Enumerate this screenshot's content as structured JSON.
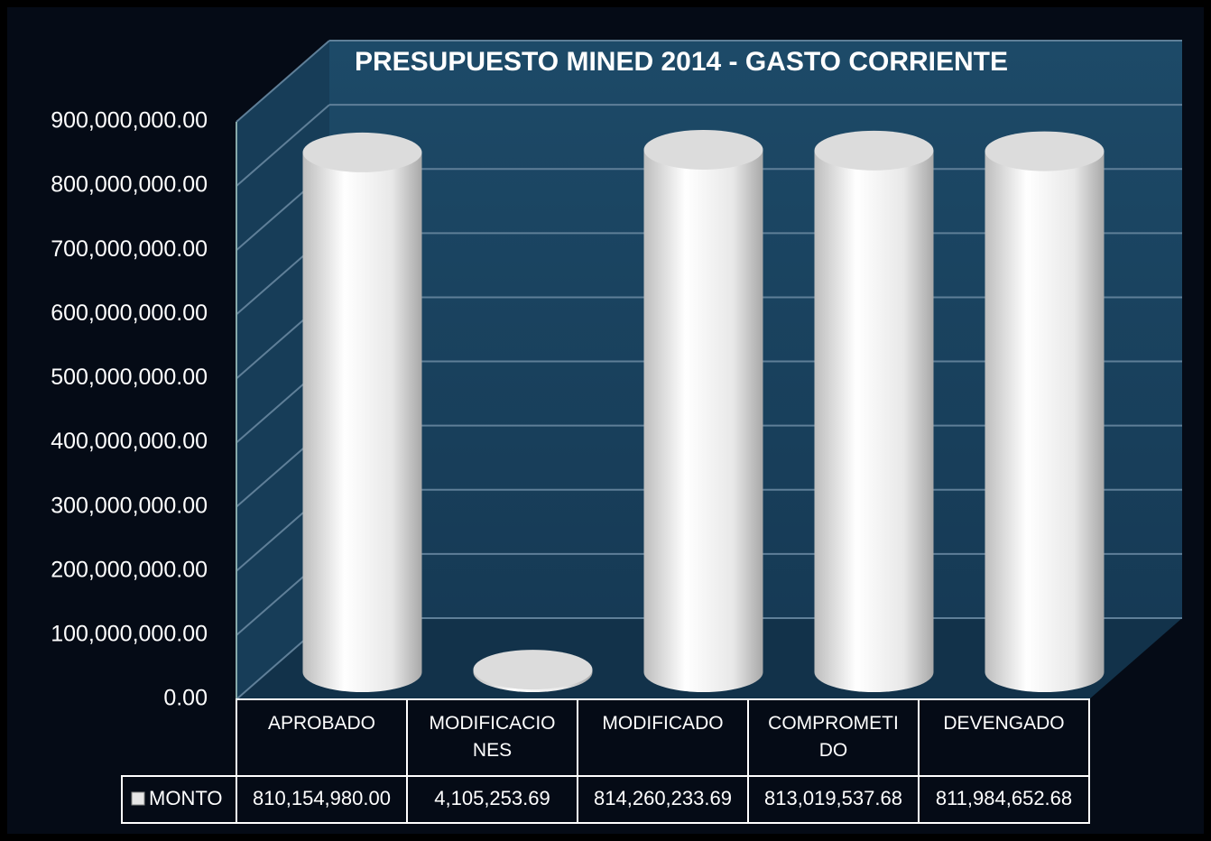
{
  "chart_data": {
    "type": "bar",
    "title": "PRESUPUESTO  MINED 2014 - GASTO CORRIENTE",
    "categories": [
      "APROBADO",
      "MODIFICACIONES",
      "MODIFICADO",
      "COMPROMETIDO",
      "DEVENGADO"
    ],
    "series": [
      {
        "name": "MONTO",
        "color": "#e6e6e6",
        "values": [
          810154980.0,
          4105253.69,
          814260233.69,
          813019537.68,
          811984652.68
        ],
        "value_labels": [
          "810,154,980.00",
          "4,105,253.69",
          "814,260,233.69",
          "813,019,537.68",
          "811,984,652.68"
        ]
      }
    ],
    "ylim": [
      0,
      900000000
    ],
    "yticks": [
      {
        "value": 0,
        "label": "0.00"
      },
      {
        "value": 100000000,
        "label": "100,000,000.00"
      },
      {
        "value": 200000000,
        "label": "200,000,000.00"
      },
      {
        "value": 300000000,
        "label": "300,000,000.00"
      },
      {
        "value": 400000000,
        "label": "400,000,000.00"
      },
      {
        "value": 500000000,
        "label": "500,000,000.00"
      },
      {
        "value": 600000000,
        "label": "600,000,000.00"
      },
      {
        "value": 700000000,
        "label": "700,000,000.00"
      },
      {
        "value": 800000000,
        "label": "800,000,000.00"
      },
      {
        "value": 900000000,
        "label": "900,000,000.00"
      }
    ],
    "grid": true,
    "data_table": true
  }
}
